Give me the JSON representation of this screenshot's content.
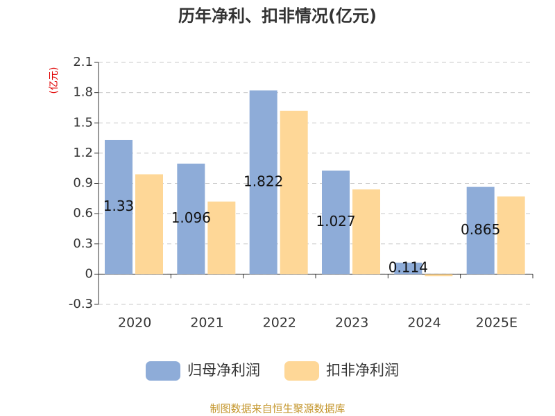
{
  "chart_data": {
    "type": "bar",
    "title": "历年净利、扣非情况(亿元)",
    "y_label": "(亿元)",
    "source": "制图数据来自恒生聚源数据库",
    "categories": [
      "2020",
      "2021",
      "2022",
      "2023",
      "2024",
      "2025E"
    ],
    "series": [
      {
        "name": "归母净利润",
        "color": "#8eacd8",
        "values": [
          1.33,
          1.096,
          1.822,
          1.027,
          0.114,
          0.865
        ],
        "show_labels": true
      },
      {
        "name": "扣非净利润",
        "color": "#fed797",
        "values": [
          0.99,
          0.72,
          1.62,
          0.84,
          -0.02,
          0.77
        ],
        "show_labels": false
      }
    ],
    "ylim": [
      -0.3,
      2.1
    ],
    "yticks": [
      -0.3,
      0,
      0.3,
      0.6,
      0.9,
      1.2,
      1.5,
      1.8,
      2.1
    ],
    "grid": true
  }
}
